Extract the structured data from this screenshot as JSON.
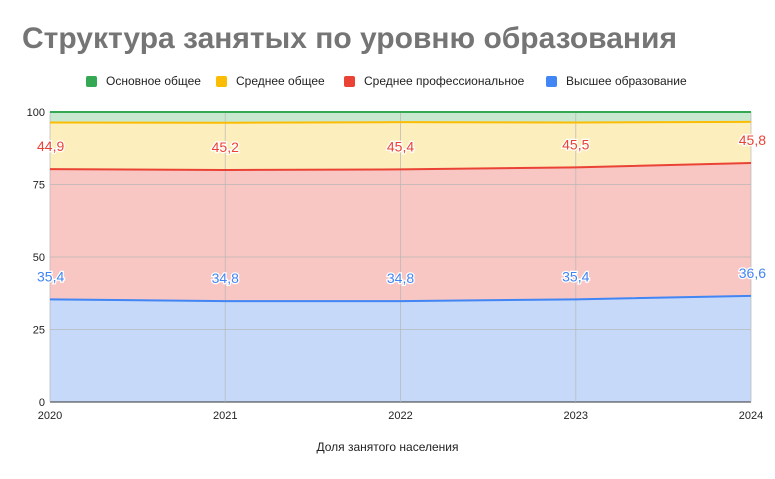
{
  "chart_data": {
    "type": "area",
    "stacked": true,
    "title": "Структура занятых по уровню образования",
    "xlabel": "Доля занятого населения",
    "ylabel": "",
    "x": [
      "2020",
      "2021",
      "2022",
      "2023",
      "2024"
    ],
    "ylim": [
      0,
      100
    ],
    "yticks": [
      "0",
      "25",
      "50",
      "75",
      "100"
    ],
    "grid": true,
    "legend_position": "top",
    "series": [
      {
        "name": "Основное общее",
        "color": "#34a853",
        "fill": "#c9e8d0",
        "values": [
          3.6,
          3.7,
          3.5,
          3.6,
          3.4
        ],
        "labels": [
          "",
          "",
          "",
          "",
          ""
        ]
      },
      {
        "name": "Среднее общее",
        "color": "#fbbc04",
        "fill": "#fdefbd",
        "values": [
          16.1,
          16.3,
          16.3,
          15.5,
          14.2
        ],
        "labels": [
          "",
          "",
          "",
          "",
          ""
        ]
      },
      {
        "name": "Среднее профессиональное",
        "color": "#ea4335",
        "fill": "#f8c7c3",
        "values": [
          44.9,
          45.2,
          45.4,
          45.5,
          45.8
        ],
        "labels": [
          "44,9",
          "45,2",
          "45,4",
          "45,5",
          "45,8"
        ]
      },
      {
        "name": "Высшее образование",
        "color": "#4285f4",
        "fill": "#c6d9f8",
        "values": [
          35.4,
          34.8,
          34.8,
          35.4,
          36.6
        ],
        "labels": [
          "35,4",
          "34,8",
          "34,8",
          "35,4",
          "36,6"
        ]
      }
    ]
  }
}
